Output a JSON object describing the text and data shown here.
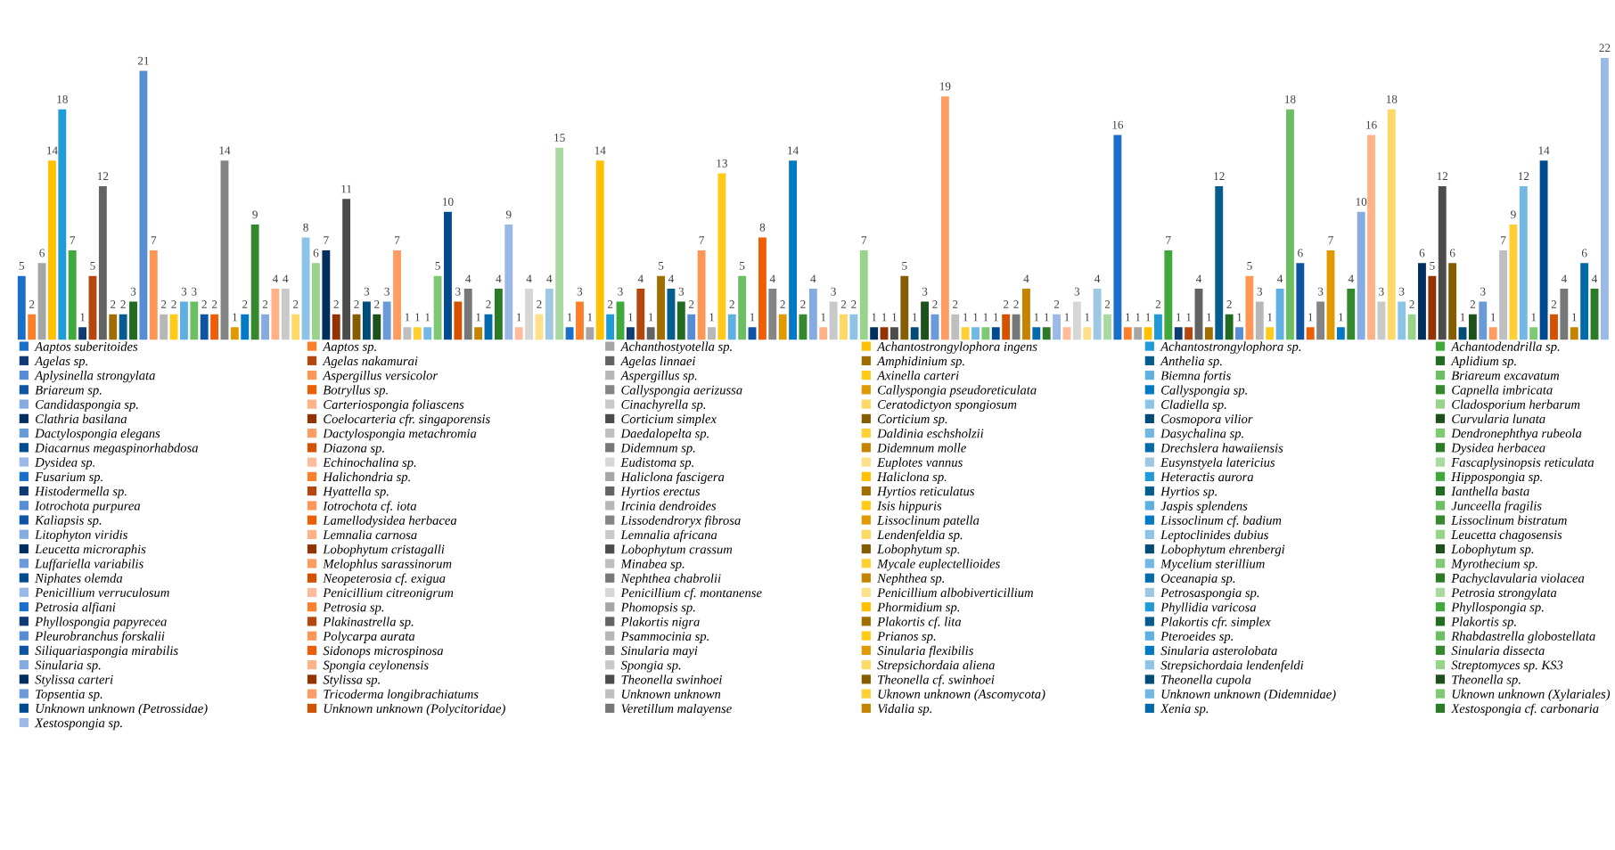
{
  "chart_data": {
    "type": "bar",
    "categories": [
      null
    ],
    "series": [
      {
        "name": "Aaptos suberitoides",
        "color": "#1a6fc8",
        "values": [
          5
        ]
      },
      {
        "name": "Aaptos sp.",
        "color": "#fd7f2a",
        "values": [
          2
        ]
      },
      {
        "name": "Achanthostyotella sp.",
        "color": "#a5a5a5",
        "values": [
          6
        ]
      },
      {
        "name": "Achantostrongylophora ingens",
        "color": "#ffc000",
        "values": [
          14
        ]
      },
      {
        "name": "Achantostrongylophora sp.",
        "color": "#1f9bd8",
        "values": [
          18
        ]
      },
      {
        "name": "Achantodendrilla sp.",
        "color": "#41a83c",
        "values": [
          7
        ]
      },
      {
        "name": "Agelas sp.",
        "color": "#0f3a73",
        "values": [
          1
        ]
      },
      {
        "name": "Agelas nakamurai",
        "color": "#b4470d",
        "values": [
          5
        ]
      },
      {
        "name": "Agelas linnaei",
        "color": "#636363",
        "values": [
          12
        ]
      },
      {
        "name": "Amphidinium sp.",
        "color": "#a06e00",
        "values": [
          2
        ]
      },
      {
        "name": "Anthelia sp.",
        "color": "#055c8f",
        "values": [
          2
        ]
      },
      {
        "name": "Aplidium sp.",
        "color": "#226b22",
        "values": [
          3
        ]
      },
      {
        "name": "Aplysinella strongylata",
        "color": "#568dd5",
        "values": [
          21
        ]
      },
      {
        "name": "Aspergillus versicolor",
        "color": "#fe9656",
        "values": [
          7
        ]
      },
      {
        "name": "Aspergillus sp.",
        "color": "#b7b7b7",
        "values": [
          2
        ]
      },
      {
        "name": "Axinella carteri",
        "color": "#ffcb18",
        "values": [
          2
        ]
      },
      {
        "name": "Biemna fortis",
        "color": "#5eb0e2",
        "values": [
          3
        ]
      },
      {
        "name": "Briareum excavatum",
        "color": "#6bbf62",
        "values": [
          3
        ]
      },
      {
        "name": "Briareum sp.",
        "color": "#0f54a3",
        "values": [
          2
        ]
      },
      {
        "name": "Botryllus sp.",
        "color": "#ee5e05",
        "values": [
          2
        ]
      },
      {
        "name": "Callyspongia aerizussa",
        "color": "#848484",
        "values": [
          14
        ]
      },
      {
        "name": "Callyspongia pseudoreticulata",
        "color": "#df9a00",
        "values": [
          1
        ]
      },
      {
        "name": "Callyspongia sp.",
        "color": "#007ac4",
        "values": [
          2
        ]
      },
      {
        "name": "Capnella imbricata",
        "color": "#34882e",
        "values": [
          9
        ]
      },
      {
        "name": "Candidaspongia sp.",
        "color": "#86abe0",
        "values": [
          2
        ]
      },
      {
        "name": "Carteriospongia foliascens",
        "color": "#ffb287",
        "values": [
          4
        ]
      },
      {
        "name": "Cinachyrella sp.",
        "color": "#c9c9c9",
        "values": [
          4
        ]
      },
      {
        "name": "Ceratodictyon spongiosum",
        "color": "#ffd966",
        "values": [
          2
        ]
      },
      {
        "name": "Cladiella sp.",
        "color": "#8cc4e8",
        "values": [
          8
        ]
      },
      {
        "name": "Cladosporium herbarum",
        "color": "#97d38b",
        "values": [
          6
        ]
      },
      {
        "name": "Clathria basilana",
        "color": "#002f5f",
        "values": [
          7
        ]
      },
      {
        "name": "Coelocarteria cfr. singaporensis",
        "color": "#933303",
        "values": [
          2
        ]
      },
      {
        "name": "Corticium simplex",
        "color": "#4c4c4c",
        "values": [
          11
        ]
      },
      {
        "name": "Corticium sp.",
        "color": "#855c00",
        "values": [
          2
        ]
      },
      {
        "name": "Cosmopora vilior",
        "color": "#004c78",
        "values": [
          3
        ]
      },
      {
        "name": "Curvularia lunata",
        "color": "#1c521a",
        "values": [
          2
        ]
      },
      {
        "name": "Dactylospongia elegans",
        "color": "#6a9ad8",
        "values": [
          3
        ]
      },
      {
        "name": "Dactylospongia metachromia",
        "color": "#fe9c62",
        "values": [
          7
        ]
      },
      {
        "name": "Daedalopelta sp.",
        "color": "#bfbfbf",
        "values": [
          1
        ]
      },
      {
        "name": "Daldinia eschsholzii",
        "color": "#ffcf33",
        "values": [
          1
        ]
      },
      {
        "name": "Dasychalina sp.",
        "color": "#72b8e4",
        "values": [
          1
        ]
      },
      {
        "name": "Dendronephthya rubeola",
        "color": "#80c974",
        "values": [
          5
        ]
      },
      {
        "name": "Diacarnus megaspinorhabdosa",
        "color": "#004a8f",
        "values": [
          10
        ]
      },
      {
        "name": "Diazona sp.",
        "color": "#d45100",
        "values": [
          3
        ]
      },
      {
        "name": "Didemnum sp.",
        "color": "#777777",
        "values": [
          4
        ]
      },
      {
        "name": "Didemnum molle",
        "color": "#c48400",
        "values": [
          1
        ]
      },
      {
        "name": "Drechslera hawaiiensis",
        "color": "#006aab",
        "values": [
          2
        ]
      },
      {
        "name": "Dysidea herbacea",
        "color": "#2b7a26",
        "values": [
          4
        ]
      },
      {
        "name": "Dysidea sp.",
        "color": "#9ab9e6",
        "values": [
          9
        ]
      },
      {
        "name": "Echinochalina sp.",
        "color": "#ffbb9b",
        "values": [
          1
        ]
      },
      {
        "name": "Eudistoma sp.",
        "color": "#d6d6d6",
        "values": [
          4
        ]
      },
      {
        "name": "Euplotes vannus",
        "color": "#ffe08a",
        "values": [
          2
        ]
      },
      {
        "name": "Eusynstyela latericius",
        "color": "#9cc8e2",
        "values": [
          4
        ]
      },
      {
        "name": "Fascaplysinopsis reticulata",
        "color": "#a9d8a0",
        "values": [
          15
        ]
      },
      {
        "name": "Fusarium sp.",
        "color": "#1a6fc8",
        "values": [
          1
        ]
      },
      {
        "name": "Halichondria sp.",
        "color": "#fd7f2a",
        "values": [
          3
        ]
      },
      {
        "name": "Haliclona fascigera",
        "color": "#a5a5a5",
        "values": [
          1
        ]
      },
      {
        "name": "Haliclona sp.",
        "color": "#ffc000",
        "values": [
          14
        ]
      },
      {
        "name": "Heteractis aurora",
        "color": "#1f9bd8",
        "values": [
          2
        ]
      },
      {
        "name": "Hippospongia sp.",
        "color": "#41a83c",
        "values": [
          3
        ]
      },
      {
        "name": "Histodermella sp.",
        "color": "#0f3a73",
        "values": [
          1
        ]
      },
      {
        "name": "Hyattella sp.",
        "color": "#b4470d",
        "values": [
          4
        ]
      },
      {
        "name": "Hyrtios erectus",
        "color": "#636363",
        "values": [
          1
        ]
      },
      {
        "name": "Hyrtios reticulatus",
        "color": "#a06e00",
        "values": [
          5
        ]
      },
      {
        "name": "Hyrtios sp.",
        "color": "#055c8f",
        "values": [
          4
        ]
      },
      {
        "name": "Ianthella basta",
        "color": "#226b22",
        "values": [
          3
        ]
      },
      {
        "name": "Iotrochota purpurea",
        "color": "#568dd5",
        "values": [
          2
        ]
      },
      {
        "name": "Iotrochota cf. iota",
        "color": "#fe9656",
        "values": [
          7
        ]
      },
      {
        "name": "Ircinia dendroides",
        "color": "#b7b7b7",
        "values": [
          1
        ]
      },
      {
        "name": "Isis hippuris",
        "color": "#ffcb18",
        "values": [
          13
        ]
      },
      {
        "name": "Jaspis splendens",
        "color": "#5eb0e2",
        "values": [
          2
        ]
      },
      {
        "name": "Junceella fragilis",
        "color": "#6bbf62",
        "values": [
          5
        ]
      },
      {
        "name": "Kaliapsis sp.",
        "color": "#0f54a3",
        "values": [
          1
        ]
      },
      {
        "name": "Lamellodysidea herbacea",
        "color": "#ee5e05",
        "values": [
          8
        ]
      },
      {
        "name": "Lissodendroryx fibrosa",
        "color": "#848484",
        "values": [
          4
        ]
      },
      {
        "name": "Lissoclinum patella",
        "color": "#df9a00",
        "values": [
          2
        ]
      },
      {
        "name": "Lissoclinum cf. badium",
        "color": "#007ac4",
        "values": [
          14
        ]
      },
      {
        "name": "Lissoclinum bistratum",
        "color": "#34882e",
        "values": [
          2
        ]
      },
      {
        "name": "Litophyton viridis",
        "color": "#86abe0",
        "values": [
          4
        ]
      },
      {
        "name": "Lemnalia carnosa",
        "color": "#ffb287",
        "values": [
          1
        ]
      },
      {
        "name": "Lemnalia africana",
        "color": "#c9c9c9",
        "values": [
          3
        ]
      },
      {
        "name": "Lendenfeldia sp.",
        "color": "#ffd966",
        "values": [
          2
        ]
      },
      {
        "name": "Leptoclinides dubius",
        "color": "#8cc4e8",
        "values": [
          2
        ]
      },
      {
        "name": "Leucetta chagosensis",
        "color": "#97d38b",
        "values": [
          7
        ]
      },
      {
        "name": "Leucetta microraphis",
        "color": "#002f5f",
        "values": [
          1
        ]
      },
      {
        "name": "Lobophytum cristagalli",
        "color": "#933303",
        "values": [
          1
        ]
      },
      {
        "name": "Lobophytum crassum",
        "color": "#4c4c4c",
        "values": [
          1
        ]
      },
      {
        "name": "Lobophytum sp.",
        "color": "#855c00",
        "values": [
          5
        ]
      },
      {
        "name": "Lobophytum ehrenbergi",
        "color": "#004c78",
        "values": [
          1
        ]
      },
      {
        "name": "Lobophytum sp.",
        "color": "#1c521a",
        "values": [
          3
        ]
      },
      {
        "name": "Luffariella variabilis",
        "color": "#6a9ad8",
        "values": [
          2
        ]
      },
      {
        "name": "Melophlus sarassinorum",
        "color": "#fe9c62",
        "values": [
          19
        ]
      },
      {
        "name": "Minabea sp.",
        "color": "#bfbfbf",
        "values": [
          2
        ]
      },
      {
        "name": "Mycale euplectellioides",
        "color": "#ffcf33",
        "values": [
          1
        ]
      },
      {
        "name": "Mycelium sterillium",
        "color": "#72b8e4",
        "values": [
          1
        ]
      },
      {
        "name": "Myrothecium sp.",
        "color": "#80c974",
        "values": [
          1
        ]
      },
      {
        "name": "Niphates olemda",
        "color": "#004a8f",
        "values": [
          1
        ]
      },
      {
        "name": "Neopeterosia cf. exigua",
        "color": "#d45100",
        "values": [
          2
        ]
      },
      {
        "name": "Nephthea chabrolii",
        "color": "#777777",
        "values": [
          2
        ]
      },
      {
        "name": "Nephthea sp.",
        "color": "#c48400",
        "values": [
          4
        ]
      },
      {
        "name": "Oceanapia sp.",
        "color": "#006aab",
        "values": [
          1
        ]
      },
      {
        "name": "Pachyclavularia violacea",
        "color": "#2b7a26",
        "values": [
          1
        ]
      },
      {
        "name": "Penicillium verruculosum",
        "color": "#9ab9e6",
        "values": [
          2
        ]
      },
      {
        "name": "Penicillium citreonigrum",
        "color": "#ffbb9b",
        "values": [
          1
        ]
      },
      {
        "name": "Penicillium cf. montanense",
        "color": "#d6d6d6",
        "values": [
          3
        ]
      },
      {
        "name": "Penicillium albobiverticillium",
        "color": "#ffe08a",
        "values": [
          1
        ]
      },
      {
        "name": "Petrosaspongia sp.",
        "color": "#9cc8e2",
        "values": [
          4
        ]
      },
      {
        "name": "Petrosia strongylata",
        "color": "#a9d8a0",
        "values": [
          2
        ]
      },
      {
        "name": "Petrosia alfiani",
        "color": "#1a6fc8",
        "values": [
          16
        ]
      },
      {
        "name": "Petrosia sp.",
        "color": "#fd7f2a",
        "values": [
          1
        ]
      },
      {
        "name": "Phomopsis sp.",
        "color": "#a5a5a5",
        "values": [
          1
        ]
      },
      {
        "name": "Phormidium sp.",
        "color": "#ffc000",
        "values": [
          1
        ]
      },
      {
        "name": "Phyllidia varicosa",
        "color": "#1f9bd8",
        "values": [
          2
        ]
      },
      {
        "name": "Phyllospongia sp.",
        "color": "#41a83c",
        "values": [
          7
        ]
      },
      {
        "name": "Phyllospongia papyrecea",
        "color": "#0f3a73",
        "values": [
          1
        ]
      },
      {
        "name": "Plakinastrella sp.",
        "color": "#b4470d",
        "values": [
          1
        ]
      },
      {
        "name": "Plakortis nigra",
        "color": "#636363",
        "values": [
          4
        ]
      },
      {
        "name": "Plakortis cf. lita",
        "color": "#a06e00",
        "values": [
          1
        ]
      },
      {
        "name": "Plakortis cfr. simplex",
        "color": "#055c8f",
        "values": [
          12
        ]
      },
      {
        "name": "Plakortis sp.",
        "color": "#226b22",
        "values": [
          2
        ]
      },
      {
        "name": "Pleurobranchus forskalii",
        "color": "#568dd5",
        "values": [
          1
        ]
      },
      {
        "name": "Polycarpa aurata",
        "color": "#fe9656",
        "values": [
          5
        ]
      },
      {
        "name": "Psammocinia sp.",
        "color": "#b7b7b7",
        "values": [
          3
        ]
      },
      {
        "name": "Prianos sp.",
        "color": "#ffcb18",
        "values": [
          1
        ]
      },
      {
        "name": "Pteroeides sp.",
        "color": "#5eb0e2",
        "values": [
          4
        ]
      },
      {
        "name": "Rhabdastrella globostellata",
        "color": "#6bbf62",
        "values": [
          18
        ]
      },
      {
        "name": "Siliquariaspongia mirabilis",
        "color": "#0f54a3",
        "values": [
          6
        ]
      },
      {
        "name": "Sidonops microspinosa",
        "color": "#ee5e05",
        "values": [
          1
        ]
      },
      {
        "name": "Sinularia mayi",
        "color": "#848484",
        "values": [
          3
        ]
      },
      {
        "name": "Sinularia flexibilis",
        "color": "#df9a00",
        "values": [
          7
        ]
      },
      {
        "name": "Sinularia asterolobata",
        "color": "#007ac4",
        "values": [
          1
        ]
      },
      {
        "name": "Sinularia dissecta",
        "color": "#34882e",
        "values": [
          4
        ]
      },
      {
        "name": "Sinularia sp.",
        "color": "#86abe0",
        "values": [
          10
        ]
      },
      {
        "name": "Spongia ceylonensis",
        "color": "#ffb287",
        "values": [
          16
        ]
      },
      {
        "name": "Spongia sp.",
        "color": "#c9c9c9",
        "values": [
          3
        ]
      },
      {
        "name": "Strepsichordaia aliena",
        "color": "#ffd966",
        "values": [
          18
        ]
      },
      {
        "name": "Strepsichordaia lendenfeldi",
        "color": "#8cc4e8",
        "values": [
          3
        ]
      },
      {
        "name": "Streptomyces sp. KS3",
        "color": "#97d38b",
        "values": [
          2
        ]
      },
      {
        "name": "Stylissa carteri",
        "color": "#002f5f",
        "values": [
          6
        ]
      },
      {
        "name": "Stylissa sp.",
        "color": "#933303",
        "values": [
          5
        ]
      },
      {
        "name": "Theonella swinhoei",
        "color": "#4c4c4c",
        "values": [
          12
        ]
      },
      {
        "name": "Theonella cf. swinhoei",
        "color": "#855c00",
        "values": [
          6
        ]
      },
      {
        "name": "Theonella cupola",
        "color": "#004c78",
        "values": [
          1
        ]
      },
      {
        "name": "Theonella sp.",
        "color": "#1c521a",
        "values": [
          2
        ]
      },
      {
        "name": "Topsentia sp.",
        "color": "#6a9ad8",
        "values": [
          3
        ]
      },
      {
        "name": "Tricoderma longibrachiatums",
        "color": "#fe9c62",
        "values": [
          1
        ]
      },
      {
        "name": "Unknown unknown",
        "color": "#bfbfbf",
        "values": [
          7
        ]
      },
      {
        "name": "Uknown unknown (Ascomycota)",
        "color": "#ffcf33",
        "values": [
          9
        ]
      },
      {
        "name": "Unknown unknown (Didemnidae)",
        "color": "#72b8e4",
        "values": [
          12
        ]
      },
      {
        "name": "Uknown unknown (Xylariales)",
        "color": "#80c974",
        "values": [
          1
        ]
      },
      {
        "name": "Unknown unknown (Petrossidae)",
        "color": "#004a8f",
        "values": [
          14
        ]
      },
      {
        "name": "Unknown unknown (Polycitoridae)",
        "color": "#d45100",
        "values": [
          2
        ]
      },
      {
        "name": "Veretillum malayense",
        "color": "#777777",
        "values": [
          4
        ]
      },
      {
        "name": "Vidalia sp.",
        "color": "#c48400",
        "values": [
          1
        ]
      },
      {
        "name": "Xenia sp.",
        "color": "#006aab",
        "values": [
          6
        ]
      },
      {
        "name": "Xestospongia cf. carbonaria",
        "color": "#2b7a26",
        "values": [
          4
        ]
      },
      {
        "name": "Xestospongia sp.",
        "color": "#9ab9e6",
        "values": [
          22
        ]
      }
    ],
    "data_labels": true,
    "legend": "bottom"
  }
}
